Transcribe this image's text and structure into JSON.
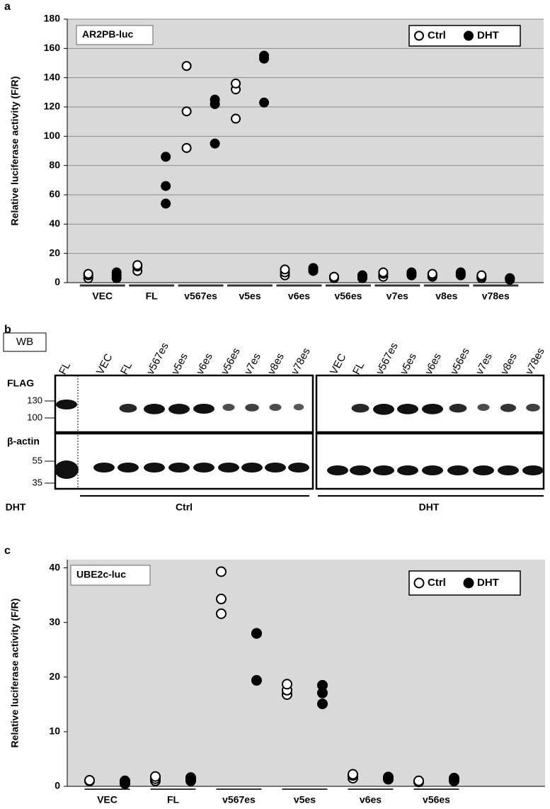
{
  "chart_data": [
    {
      "type": "scatter",
      "panel": "a",
      "title": "AR2PB-luc",
      "y_label": "Relative luciferase activity (F/R)",
      "categories": [
        "VEC",
        "FL",
        "v567es",
        "v5es",
        "v6es",
        "v56es",
        "v7es",
        "v8es",
        "v78es"
      ],
      "series": [
        {
          "name": "Ctrl",
          "color": "#ffffff",
          "values": [
            [
              3,
              5,
              6
            ],
            [
              8,
              11,
              12
            ],
            [
              92,
              117,
              148
            ],
            [
              112,
              132,
              136
            ],
            [
              5,
              7,
              9
            ],
            [
              3,
              4,
              4
            ],
            [
              4,
              6,
              7
            ],
            [
              4,
              5,
              6
            ],
            [
              3,
              4,
              5
            ]
          ]
        },
        {
          "name": "DHT",
          "color": "#000000",
          "values": [
            [
              3,
              5,
              7
            ],
            [
              54,
              66,
              86
            ],
            [
              95,
              122,
              125
            ],
            [
              123,
              153,
              155
            ],
            [
              8,
              9,
              10
            ],
            [
              3,
              4,
              5
            ],
            [
              5,
              6,
              7
            ],
            [
              5,
              6,
              7
            ],
            [
              2,
              3,
              3
            ]
          ]
        }
      ],
      "ylim": [
        0,
        180
      ],
      "yticks": [
        0,
        20,
        40,
        60,
        80,
        100,
        120,
        140,
        160,
        180
      ],
      "grid": true,
      "legend": "top-right"
    },
    {
      "type": "scatter",
      "panel": "c",
      "title": "UBE2c-luc",
      "y_label": "Relative luciferase activity (F/R)",
      "categories": [
        "VEC",
        "FL",
        "v567es",
        "v5es",
        "v6es",
        "v56es"
      ],
      "series": [
        {
          "name": "Ctrl",
          "color": "#ffffff",
          "values": [
            [
              1,
              1,
              1.1
            ],
            [
              1,
              1.4,
              1.8
            ],
            [
              31.6,
              34.3,
              39.3
            ],
            [
              16.8,
              17.6,
              18.7
            ],
            [
              1.5,
              2,
              2.2
            ],
            [
              0.8,
              0.9,
              1
            ]
          ]
        },
        {
          "name": "DHT",
          "color": "#000000",
          "values": [
            [
              0.5,
              0.8,
              1
            ],
            [
              1,
              1.3,
              1.6
            ],
            [
              19.4,
              28,
              28
            ],
            [
              15.1,
              17.1,
              18.5
            ],
            [
              1.3,
              1.5,
              1.7
            ],
            [
              1,
              1.2,
              1.5
            ]
          ]
        }
      ],
      "ylim": [
        0,
        41.5
      ],
      "yticks": [
        0,
        10,
        20,
        30,
        40
      ],
      "grid": false,
      "legend": "top-right"
    }
  ],
  "blot": {
    "panel": "b",
    "method": "WB",
    "rows": [
      {
        "label": "FLAG",
        "markers": [
          130,
          100
        ]
      },
      {
        "label": "β-actin",
        "markers": [
          55,
          35
        ]
      }
    ],
    "reference_lane": "FL",
    "ctrl_lanes": [
      "VEC",
      "FL",
      "v567es",
      "v5es",
      "v6es",
      "v56es",
      "v7es",
      "v8es",
      "v78es"
    ],
    "dht_lanes": [
      "VEC",
      "FL",
      "v567es",
      "v5es",
      "v6es",
      "v56es",
      "v7es",
      "v8es",
      "v78es"
    ],
    "groups": [
      "DHT",
      "Ctrl",
      "DHT"
    ]
  }
}
